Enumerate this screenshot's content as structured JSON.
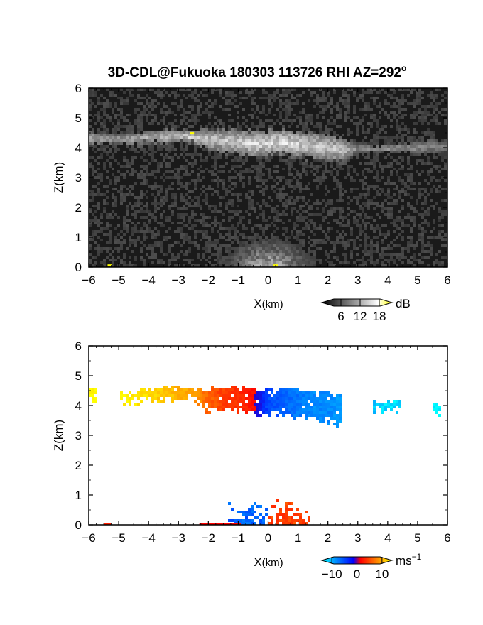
{
  "figure": {
    "title_main": "3D-CDL@Fukuoka 180303 113726 RHI AZ=292",
    "title_suffix": "o"
  },
  "chart_data": [
    {
      "type": "heatmap",
      "quantity": "backscatter intensity",
      "xlabel_main": "X",
      "xlabel_unit": "(km)",
      "ylabel": "Z(km)",
      "xlim": [
        -6,
        6
      ],
      "ylim": [
        0,
        6
      ],
      "xticks": [
        "−6",
        "−5",
        "−4",
        "−3",
        "−2",
        "−1",
        "0",
        "1",
        "2",
        "3",
        "4",
        "5",
        "6"
      ],
      "yticks": [
        "0",
        "1",
        "2",
        "3",
        "4",
        "5",
        "6"
      ],
      "colorbar": {
        "unit": "dB",
        "ticks": [
          "6",
          "12",
          "18"
        ],
        "tick_values": [
          6,
          12,
          18
        ],
        "range": [
          0,
          22
        ],
        "colors": [
          "#000000",
          "#ffffff",
          "#ffff00"
        ]
      },
      "background_color": "#1a1a1a",
      "cloud_layer": {
        "x": [
          -6.0,
          -5.5,
          -5.0,
          -4.5,
          -4.0,
          -3.5,
          -3.0,
          -2.5,
          -2.0,
          -1.5,
          -1.0,
          -0.5,
          0.0,
          0.5,
          1.0,
          1.5,
          2.0,
          2.5,
          3.0,
          3.5,
          4.0,
          4.5,
          5.0,
          5.5,
          6.0
        ],
        "top_km": [
          4.6,
          4.5,
          4.45,
          4.5,
          4.55,
          4.6,
          4.6,
          4.55,
          4.6,
          4.62,
          4.6,
          4.55,
          4.6,
          4.58,
          4.55,
          4.5,
          4.4,
          4.35,
          4.15,
          4.1,
          4.1,
          4.15,
          4.2,
          4.3,
          4.2
        ],
        "base_km": [
          4.0,
          4.1,
          4.15,
          4.05,
          4.15,
          4.1,
          4.2,
          4.15,
          3.95,
          3.85,
          3.8,
          3.7,
          3.75,
          3.8,
          3.7,
          3.65,
          3.6,
          3.5,
          3.8,
          3.85,
          3.85,
          3.85,
          3.8,
          3.8,
          3.85
        ],
        "peak_dB": [
          13,
          13,
          12,
          14,
          14,
          15,
          16,
          18,
          16,
          16,
          17,
          18,
          18,
          19,
          18,
          17,
          17,
          16,
          10,
          11,
          12,
          11,
          11,
          10,
          9
        ]
      },
      "near_field_clutter": {
        "center_x_km": 0.0,
        "max_height_km": 1.2,
        "peak_dB": 16
      },
      "yellow_spots": [
        {
          "x_km": -2.55,
          "z_km": 4.45
        },
        {
          "x_km": -5.3,
          "z_km": 0.02
        },
        {
          "x_km": 0.25,
          "z_km": 0.02
        }
      ]
    },
    {
      "type": "heatmap",
      "quantity": "radial velocity",
      "xlabel_main": "X",
      "xlabel_unit": "(km)",
      "ylabel": "Z(km)",
      "xlim": [
        -6,
        6
      ],
      "ylim": [
        0,
        6
      ],
      "xticks": [
        "−6",
        "−5",
        "−4",
        "−3",
        "−2",
        "−1",
        "0",
        "1",
        "2",
        "3",
        "4",
        "5",
        "6"
      ],
      "yticks": [
        "0",
        "1",
        "2",
        "3",
        "4",
        "5",
        "6"
      ],
      "colorbar": {
        "unit": "ms",
        "unit_exponent": "−1",
        "ticks": [
          "−10",
          "0",
          "10"
        ],
        "tick_values": [
          -10,
          0,
          10
        ],
        "range": [
          -14,
          14
        ],
        "colors": [
          "#00ffff",
          "#0000ff",
          "#ff0000",
          "#ffff00"
        ]
      },
      "cloud_layer": {
        "x": [
          -6.0,
          -5.7,
          -5.5,
          -5.0,
          -4.5,
          -4.0,
          -3.5,
          -3.0,
          -2.5,
          -2.0,
          -1.5,
          -1.0,
          -0.5,
          -0.2,
          0.0,
          0.2,
          0.5,
          1.0,
          1.5,
          2.0,
          2.5,
          3.0,
          3.5,
          4.0,
          4.5,
          5.0,
          5.5,
          5.8,
          6.0
        ],
        "top_km": [
          4.55,
          4.55,
          null,
          4.4,
          4.45,
          4.55,
          4.6,
          4.6,
          4.55,
          4.55,
          4.58,
          4.6,
          4.55,
          4.55,
          4.6,
          4.55,
          4.58,
          4.55,
          4.45,
          4.4,
          4.35,
          null,
          4.1,
          4.15,
          4.25,
          null,
          4.0,
          4.1,
          null
        ],
        "base_km": [
          4.1,
          4.2,
          null,
          4.05,
          4.1,
          4.2,
          4.2,
          4.15,
          4.2,
          3.85,
          3.85,
          3.8,
          3.8,
          3.7,
          3.7,
          3.75,
          3.7,
          3.6,
          3.65,
          3.5,
          3.35,
          null,
          3.85,
          3.85,
          3.85,
          null,
          3.75,
          3.75,
          null
        ],
        "velocity_ms": [
          14,
          14,
          null,
          13,
          13,
          12,
          11,
          10,
          9,
          6,
          4,
          3,
          1,
          -3,
          -6,
          -6,
          -7,
          -8,
          -9,
          -9,
          -10,
          null,
          -12,
          -13,
          -13,
          null,
          -14,
          -14,
          null
        ]
      },
      "near_field": {
        "negative_x_range_km": [
          -1.4,
          0
        ],
        "positive_x_range_km": [
          0,
          1.4
        ],
        "max_height_km": 0.85,
        "negative_velocity_ms": -7,
        "positive_velocity_ms": 4
      }
    }
  ]
}
